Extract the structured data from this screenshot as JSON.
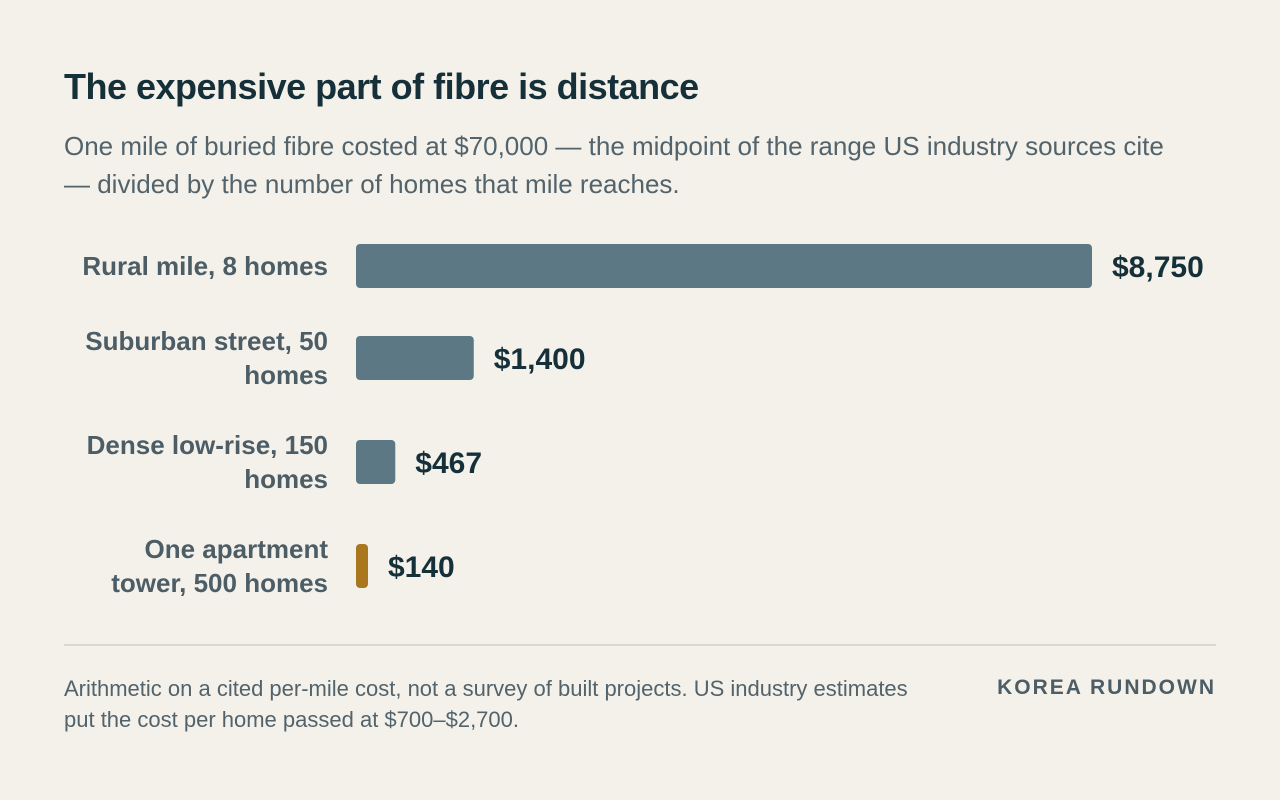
{
  "header": {
    "title": "The expensive part of fibre is distance",
    "subtitle": "One mile of buried fibre costed at $70,000 — the midpoint of the range US industry sources cite — divided by the number of homes that mile reaches."
  },
  "chart_data": {
    "type": "bar",
    "orientation": "horizontal",
    "categories": [
      [
        "Rural mile, 8 homes"
      ],
      [
        "Suburban street, 50",
        "homes"
      ],
      [
        "Dense low-rise, 150",
        "homes"
      ],
      [
        "One apartment",
        "tower, 500 homes"
      ]
    ],
    "values": [
      8750,
      1400,
      467,
      140
    ],
    "value_labels": [
      "$8,750",
      "$1,400",
      "$467",
      "$140"
    ],
    "xlim": [
      0,
      8750
    ],
    "grid": false,
    "colors": {
      "default": "#5c7884",
      "highlight": "#a9771d"
    },
    "highlight_index": 3
  },
  "footer": {
    "note": "Arithmetic on a cited per-mile cost, not a survey of built projects. US industry estimates put the cost per home passed at $700–$2,700.",
    "brand": "KOREA RUNDOWN"
  }
}
